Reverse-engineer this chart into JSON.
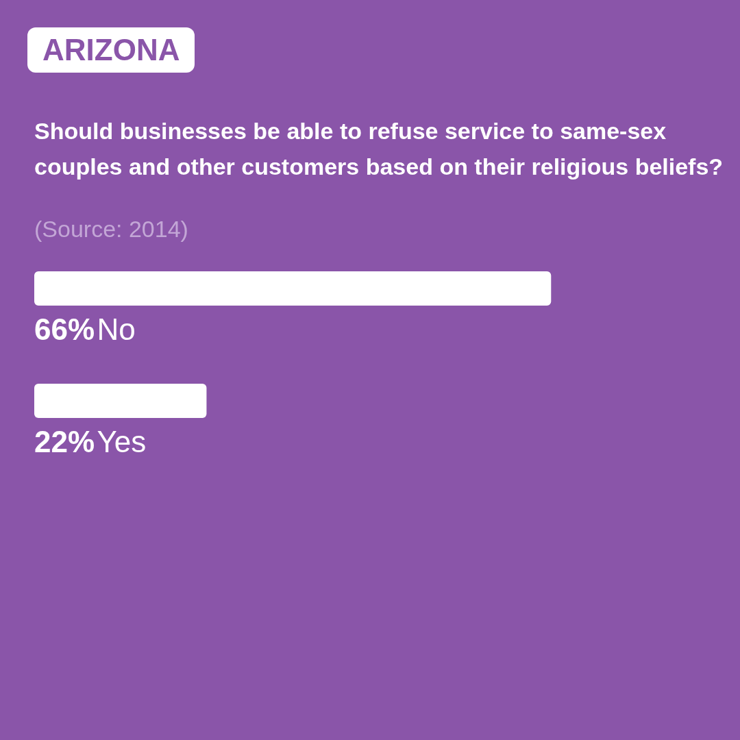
{
  "chart_data": {
    "type": "bar",
    "orientation": "horizontal",
    "title": "ARIZONA",
    "subtitle": "Should businesses be able to refuse service to same-sex couples and other customers based on their religious beliefs?",
    "annotations": [
      "(Source: 2014)"
    ],
    "categories": [
      "No",
      "Yes"
    ],
    "values": [
      66,
      22
    ],
    "value_labels": [
      "66%",
      "22%"
    ],
    "color": "#ffffff"
  }
}
